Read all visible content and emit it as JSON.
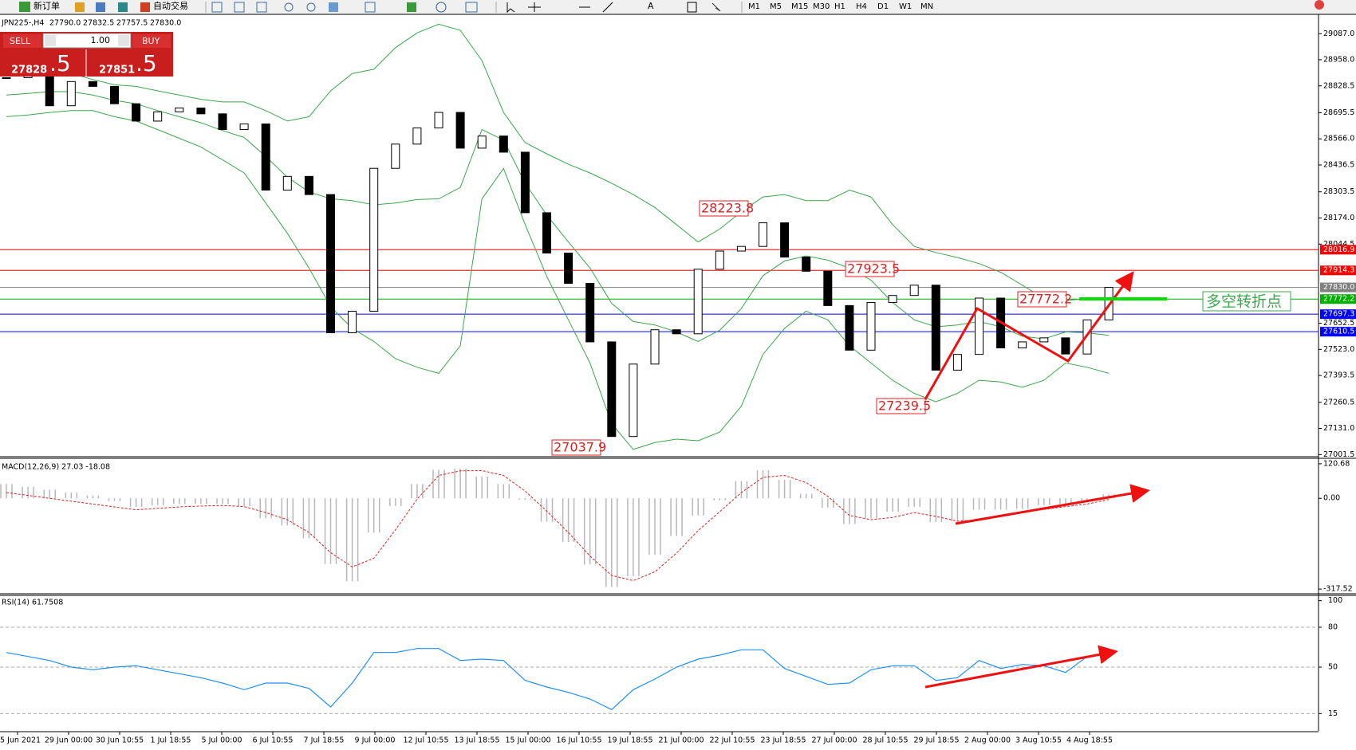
{
  "toolbar": {
    "new_order": "新订单",
    "auto_trading": "自动交易",
    "timeframes": [
      "M1",
      "M5",
      "M15",
      "M30",
      "H1",
      "H4",
      "D1",
      "W1",
      "MN"
    ]
  },
  "chart": {
    "header": {
      "symbol": "JPN225-,H4",
      "ohlc": [
        "27790.0",
        "27832.5",
        "27757.5",
        "27830.0"
      ]
    },
    "trade_panel": {
      "sell": "SELL",
      "buy": "BUY",
      "lot": "1.00",
      "bid": {
        "big": "27828",
        "small": ".5"
      },
      "ask": {
        "big": "27851",
        "small": ".5"
      }
    },
    "price": {
      "ylim": [
        26995,
        29183
      ],
      "yticks": [
        {
          "value": 29087,
          "label": "29087.0"
        },
        {
          "value": 28958,
          "label": "28958.0"
        },
        28828.5,
        28695.5,
        {
          "value": 28566,
          "label": "28566.0"
        },
        28436.5,
        28303.5,
        {
          "value": 28174,
          "label": "28174.0"
        },
        28044.5,
        27652.5,
        {
          "value": 27523,
          "label": "27523.0"
        },
        27393.5,
        27260.5,
        {
          "value": 27131,
          "label": "27131.0"
        },
        27001.5
      ],
      "levels": [
        {
          "value": 28016.9,
          "color": "#ff0000"
        },
        {
          "value": 27914.3,
          "color": "#ff0000"
        },
        {
          "value": 27830,
          "label": "27830.0",
          "color": "#808080"
        },
        {
          "value": 27772.2,
          "color": "#00b000"
        },
        {
          "value": 27697.3,
          "color": "#0000ff"
        },
        {
          "value": 27610.5,
          "color": "#0000ff"
        }
      ],
      "closes": [
        28869,
        28900,
        28730,
        28850,
        28826,
        28740,
        28654,
        28700,
        28719,
        28690,
        28612,
        28640,
        28312,
        28380,
        28290,
        27605,
        27712,
        28420,
        28540,
        28620,
        28697,
        28520,
        28580,
        28500,
        28200,
        28000,
        27850,
        27560,
        27091,
        27450,
        27620,
        27600,
        27920,
        28010,
        28033,
        28150,
        27980,
        27910,
        27740,
        27519,
        27755,
        27790,
        27841,
        27420,
        27498,
        27777,
        27530,
        27560,
        27580,
        27500,
        27669,
        27830
      ],
      "bollinger": {
        "color": "#3aa84a",
        "upper": [
          28890,
          28899,
          28903,
          28890,
          28860,
          28834,
          28826,
          28804,
          28783,
          28762,
          28749,
          28749,
          28706,
          28654,
          28676,
          28804,
          28890,
          28911,
          29018,
          29091,
          29134,
          29104,
          28954,
          28697,
          28547,
          28492,
          28440,
          28397,
          28346,
          28290,
          28226,
          28141,
          28055,
          28119,
          28205,
          28278,
          28290,
          28260,
          28260,
          28312,
          28278,
          28141,
          28033,
          28003,
          27978,
          27948,
          27905,
          27841,
          27776,
          27764,
          27776,
          27776
        ],
        "middle": [
          28783,
          28791,
          28800,
          28800,
          28783,
          28757,
          28740,
          28706,
          28676,
          28646,
          28607,
          28573,
          28479,
          28376,
          28303,
          28269,
          28260,
          28239,
          28248,
          28265,
          28269,
          28325,
          28612,
          28560,
          28346,
          28188,
          28055,
          27926,
          27751,
          27661,
          27644,
          27609,
          27562,
          27618,
          27725,
          27888,
          27961,
          27986,
          27965,
          27926,
          27866,
          27755,
          27669,
          27635,
          27644,
          27661,
          27635,
          27588,
          27575,
          27609,
          27605,
          27592
        ],
        "lower": [
          28676,
          28684,
          28697,
          28706,
          28706,
          28676,
          28654,
          28612,
          28569,
          28526,
          28462,
          28397,
          28248,
          28098,
          27926,
          27734,
          27627,
          27562,
          27477,
          27434,
          27404,
          27541,
          28269,
          28419,
          28141,
          27884,
          27669,
          27455,
          27155,
          27027,
          27061,
          27078,
          27070,
          27113,
          27241,
          27498,
          27627,
          27712,
          27669,
          27541,
          27455,
          27370,
          27305,
          27263,
          27305,
          27370,
          27361,
          27335,
          27370,
          27455,
          27434,
          27404
        ]
      },
      "annotations": [
        28223.8,
        27923.5,
        27772.2,
        27239.5,
        27037.9
      ],
      "note": "多空转折点"
    },
    "dates": [
      "5 Jun 2021",
      "29 Jun 00:00",
      "30 Jun 10:55",
      "1 Jul 18:55",
      "5 Jul 00:00",
      "6 Jul 10:55",
      "7 Jul 18:55",
      "9 Jul 00:00",
      "12 Jul 10:55",
      "13 Jul 18:55",
      "15 Jul 00:00",
      "16 Jul 10:55",
      "19 Jul 18:55",
      "21 Jul 00:00",
      "22 Jul 10:55",
      "23 Jul 18:55",
      "27 Jul 00:00",
      "28 Jul 10:55",
      "29 Jul 18:55",
      "2 Aug 00:00",
      "3 Aug 10:55",
      "4 Aug 18:55"
    ],
    "macd": {
      "label": "MACD(12,26,9) 27.03 -18.08",
      "ylim": [
        -334,
        140
      ],
      "yticks": [
        120.68,
        {
          "value": 0,
          "label": "0.00"
        },
        -317.52
      ],
      "histogram": [
        50,
        40,
        30,
        20,
        10,
        -10,
        -30,
        -25,
        -20,
        -20,
        -20,
        -28,
        -70,
        -95,
        -140,
        -230,
        -290,
        -120,
        -27,
        50,
        100,
        104,
        76,
        50,
        -5,
        -82,
        -153,
        -232,
        -310,
        -272,
        -197,
        -132,
        -60,
        -7,
        60,
        98,
        65,
        16,
        -33,
        -90,
        -70,
        -47,
        -30,
        -83,
        -80,
        -40,
        -40,
        -37,
        -24,
        -20,
        -10,
        14
      ],
      "signal": [
        20,
        10,
        0,
        -10,
        -20,
        -30,
        -40,
        -35,
        -30,
        -27,
        -25,
        -29,
        -50,
        -75,
        -120,
        -190,
        -240,
        -210,
        -110,
        -3,
        80,
        96,
        97,
        80,
        25,
        -45,
        -120,
        -202,
        -270,
        -288,
        -257,
        -192,
        -113,
        -47,
        20,
        73,
        80,
        55,
        7,
        -60,
        -75,
        -67,
        -50,
        -63,
        -80,
        -75,
        -62,
        -48,
        -39,
        -29,
        -20,
        -4
      ]
    },
    "rsi": {
      "label": "RSI(14) 61.7508",
      "ylim": [
        2,
        104
      ],
      "yticks": [
        100,
        80,
        50,
        15
      ],
      "values": [
        61,
        58,
        55,
        50,
        48,
        50,
        51,
        48,
        45,
        42,
        38,
        33,
        38,
        38,
        34,
        20,
        38,
        61,
        61,
        64,
        64,
        55,
        56,
        55,
        40,
        35,
        31,
        26,
        18,
        33,
        41,
        50,
        56,
        59,
        63,
        63,
        49,
        43,
        37,
        38,
        48,
        51,
        51,
        40,
        42,
        55,
        49,
        52,
        51,
        46,
        58,
        61
      ]
    }
  }
}
